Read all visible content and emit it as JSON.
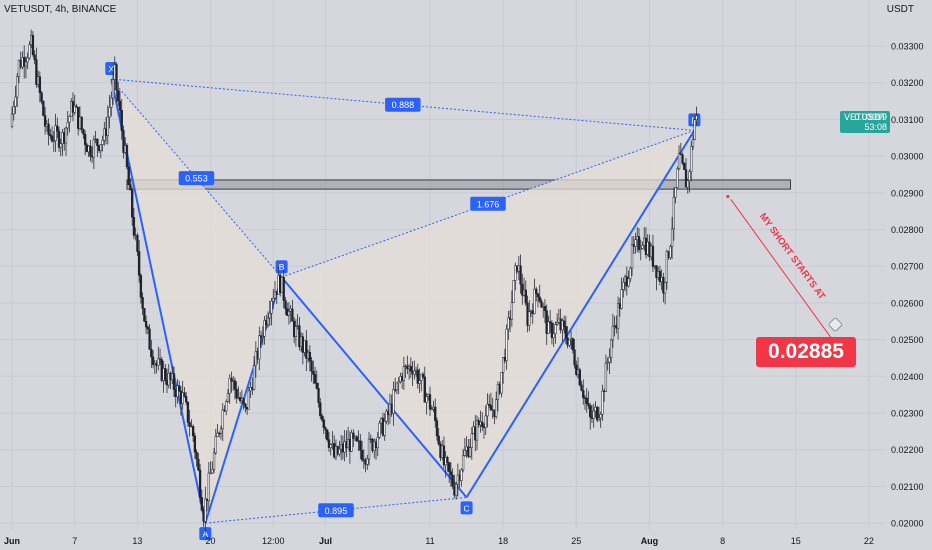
{
  "header": {
    "title": "VETUSDT, 4h, BINANCE",
    "currency": "USDT"
  },
  "price_tag": {
    "symbol": "VETUSDT",
    "price": "0.03099",
    "countdown": "53:08",
    "value": 0.03099,
    "color": "#26a69a"
  },
  "annotation": {
    "text": "MY SHORT STARTS AT",
    "price_label": "0.02885",
    "price": 0.02885,
    "color": "#f23645"
  },
  "chart_data": {
    "type": "candlestick",
    "title": "VETUSDT, 4h, BINANCE",
    "ylabel": "USDT",
    "ylim": [
      0.0196,
      0.0343
    ],
    "xlim_days": [
      0,
      79.5
    ],
    "yticks": [
      "0.03300",
      "0.03200",
      "0.03100",
      "0.03000",
      "0.02900",
      "0.02800",
      "0.02700",
      "0.02600",
      "0.02500",
      "0.02400",
      "0.02300",
      "0.02200",
      "0.02100",
      "0.02000"
    ],
    "xticks": [
      {
        "label": "Jun",
        "day": 0
      },
      {
        "label": "7",
        "day": 6
      },
      {
        "label": "13",
        "day": 12
      },
      {
        "label": "20",
        "day": 19
      },
      {
        "label": "12:00",
        "day": 25
      },
      {
        "label": "Jul",
        "day": 30
      },
      {
        "label": "11",
        "day": 40
      },
      {
        "label": "18",
        "day": 47
      },
      {
        "label": "25",
        "day": 54
      },
      {
        "label": "Aug",
        "day": 61
      },
      {
        "label": "8",
        "day": 68
      },
      {
        "label": "15",
        "day": 75
      },
      {
        "label": "22",
        "day": 82
      }
    ],
    "colors": {
      "up": "#26a69a",
      "down": "#ef5350",
      "pattern": "#2962ff",
      "fill": "#e6ded5"
    },
    "price_path": [
      {
        "day": 0,
        "price": 0.0308
      },
      {
        "day": 0.8,
        "price": 0.0325
      },
      {
        "day": 2,
        "price": 0.033
      },
      {
        "day": 3.5,
        "price": 0.0306
      },
      {
        "day": 5,
        "price": 0.0305
      },
      {
        "day": 6,
        "price": 0.0314
      },
      {
        "day": 7.5,
        "price": 0.0302
      },
      {
        "day": 9,
        "price": 0.0305
      },
      {
        "day": 10,
        "price": 0.0322
      },
      {
        "day": 11,
        "price": 0.03
      },
      {
        "day": 12,
        "price": 0.0276
      },
      {
        "day": 13,
        "price": 0.0252
      },
      {
        "day": 14,
        "price": 0.0243
      },
      {
        "day": 15.5,
        "price": 0.0238
      },
      {
        "day": 16.5,
        "price": 0.0234
      },
      {
        "day": 17.5,
        "price": 0.0224
      },
      {
        "day": 18.5,
        "price": 0.0203
      },
      {
        "day": 20,
        "price": 0.0226
      },
      {
        "day": 21,
        "price": 0.024
      },
      {
        "day": 22.5,
        "price": 0.023
      },
      {
        "day": 24,
        "price": 0.0251
      },
      {
        "day": 25,
        "price": 0.0262
      },
      {
        "day": 25.8,
        "price": 0.0266
      },
      {
        "day": 27,
        "price": 0.0254
      },
      {
        "day": 28.5,
        "price": 0.0245
      },
      {
        "day": 29.5,
        "price": 0.0233
      },
      {
        "day": 31,
        "price": 0.0218
      },
      {
        "day": 32.5,
        "price": 0.0222
      },
      {
        "day": 34,
        "price": 0.0219
      },
      {
        "day": 36,
        "price": 0.0228
      },
      {
        "day": 37.5,
        "price": 0.0241
      },
      {
        "day": 38.5,
        "price": 0.0243
      },
      {
        "day": 39.5,
        "price": 0.0237
      },
      {
        "day": 40.5,
        "price": 0.023
      },
      {
        "day": 41.5,
        "price": 0.0216
      },
      {
        "day": 42.5,
        "price": 0.021
      },
      {
        "day": 43.5,
        "price": 0.0219
      },
      {
        "day": 45,
        "price": 0.0228
      },
      {
        "day": 46.5,
        "price": 0.0232
      },
      {
        "day": 47.5,
        "price": 0.025
      },
      {
        "day": 48.5,
        "price": 0.0271
      },
      {
        "day": 49.5,
        "price": 0.0256
      },
      {
        "day": 50.5,
        "price": 0.0264
      },
      {
        "day": 51.5,
        "price": 0.0252
      },
      {
        "day": 52.5,
        "price": 0.0254
      },
      {
        "day": 53.5,
        "price": 0.025
      },
      {
        "day": 54.5,
        "price": 0.024
      },
      {
        "day": 55.5,
        "price": 0.0228
      },
      {
        "day": 56.5,
        "price": 0.0232
      },
      {
        "day": 57.5,
        "price": 0.025
      },
      {
        "day": 58.5,
        "price": 0.0262
      },
      {
        "day": 59.5,
        "price": 0.0273
      },
      {
        "day": 60.5,
        "price": 0.0278
      },
      {
        "day": 61.5,
        "price": 0.0272
      },
      {
        "day": 62.5,
        "price": 0.0265
      },
      {
        "day": 63.2,
        "price": 0.0278
      },
      {
        "day": 64,
        "price": 0.0299
      },
      {
        "day": 64.8,
        "price": 0.0292
      },
      {
        "day": 65.5,
        "price": 0.031
      }
    ],
    "harmonic_pattern": {
      "points": [
        {
          "label": "X",
          "day": 9.5,
          "price": 0.0321
        },
        {
          "label": "A",
          "day": 18.5,
          "price": 0.02
        },
        {
          "label": "B",
          "day": 25.8,
          "price": 0.0267
        },
        {
          "label": "C",
          "day": 43.5,
          "price": 0.0207
        },
        {
          "label": "D",
          "day": 65.3,
          "price": 0.0307
        }
      ],
      "ratios": [
        {
          "label": "0.553",
          "from": "X",
          "to": "B"
        },
        {
          "label": "0.888",
          "from": "X",
          "to": "D"
        },
        {
          "label": "1.676",
          "from": "B",
          "to": "D"
        },
        {
          "label": "0.895",
          "from": "A",
          "to": "C"
        }
      ]
    },
    "zone": {
      "day_from": 11,
      "day_to": 74.5,
      "price_top": 0.02935,
      "price_bottom": 0.0291
    },
    "annotation": {
      "day_start": 68.5,
      "price_start": 0.0289,
      "day_end": 78.5,
      "price_end": 0.025
    }
  }
}
